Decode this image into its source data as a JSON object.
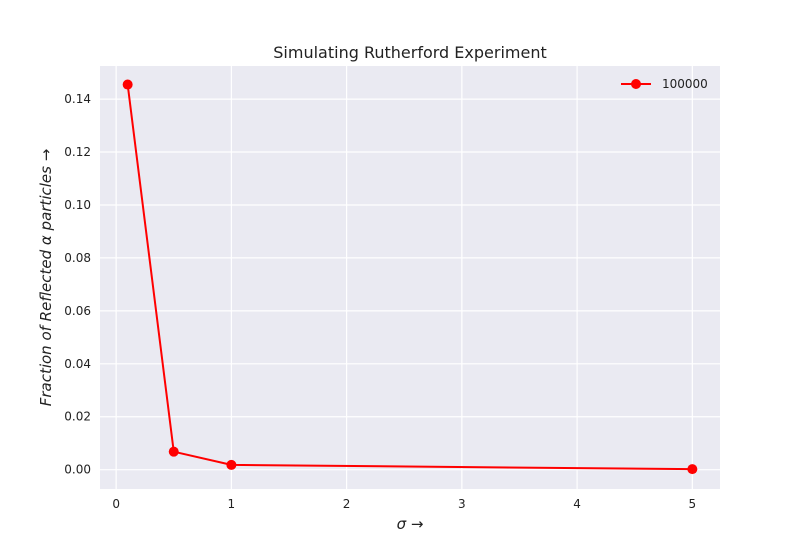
{
  "chart_data": {
    "type": "line",
    "title": "Simulating Rutherford Experiment",
    "xlabel": "σ →",
    "ylabel": "Fraction of Reflected α particles →",
    "xlim": [
      -0.14,
      5.24
    ],
    "ylim": [
      -0.0073,
      0.1525
    ],
    "xticks": [
      0,
      1,
      2,
      3,
      4,
      5
    ],
    "xtick_labels": [
      "0",
      "1",
      "2",
      "3",
      "4",
      "5"
    ],
    "yticks": [
      0.0,
      0.02,
      0.04,
      0.06,
      0.08,
      0.1,
      0.12,
      0.14
    ],
    "ytick_labels": [
      "0.00",
      "0.02",
      "0.04",
      "0.06",
      "0.08",
      "0.10",
      "0.12",
      "0.14"
    ],
    "grid": true,
    "legend_position": "top-right",
    "series": [
      {
        "name": "100000",
        "color": "#ff0000",
        "marker": "circle",
        "x": [
          0.1,
          0.5,
          1,
          5
        ],
        "y": [
          0.1455,
          0.0068,
          0.0018,
          0.0002
        ]
      }
    ]
  }
}
